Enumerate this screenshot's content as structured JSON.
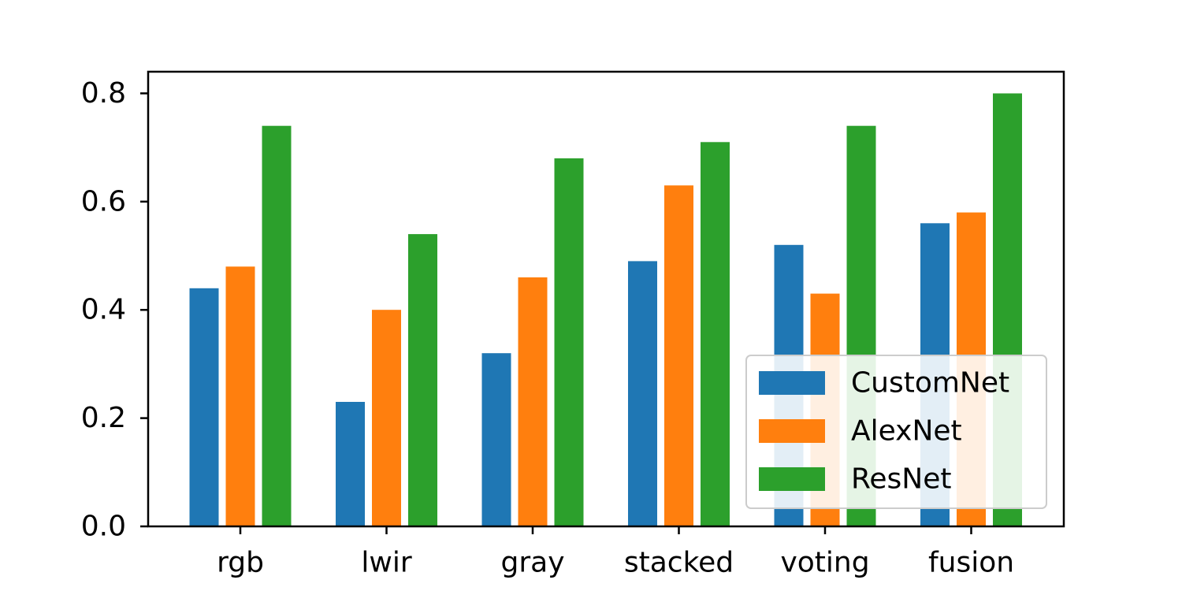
{
  "chart_data": {
    "type": "bar",
    "categories": [
      "rgb",
      "lwir",
      "gray",
      "stacked",
      "voting",
      "fusion"
    ],
    "series": [
      {
        "name": "CustomNet",
        "color": "#1f77b4",
        "values": [
          0.44,
          0.23,
          0.32,
          0.49,
          0.52,
          0.56
        ]
      },
      {
        "name": "AlexNet",
        "color": "#ff7f0e",
        "values": [
          0.48,
          0.4,
          0.46,
          0.63,
          0.43,
          0.58
        ]
      },
      {
        "name": "ResNet",
        "color": "#2ca02c",
        "values": [
          0.74,
          0.54,
          0.68,
          0.71,
          0.74,
          0.8
        ]
      }
    ],
    "ylim": [
      0,
      0.84
    ],
    "yticks": [
      "0.0",
      "0.2",
      "0.4",
      "0.6",
      "0.8"
    ],
    "title": "",
    "xlabel": "",
    "ylabel": "",
    "grid": false,
    "legend_position": "lower right"
  }
}
